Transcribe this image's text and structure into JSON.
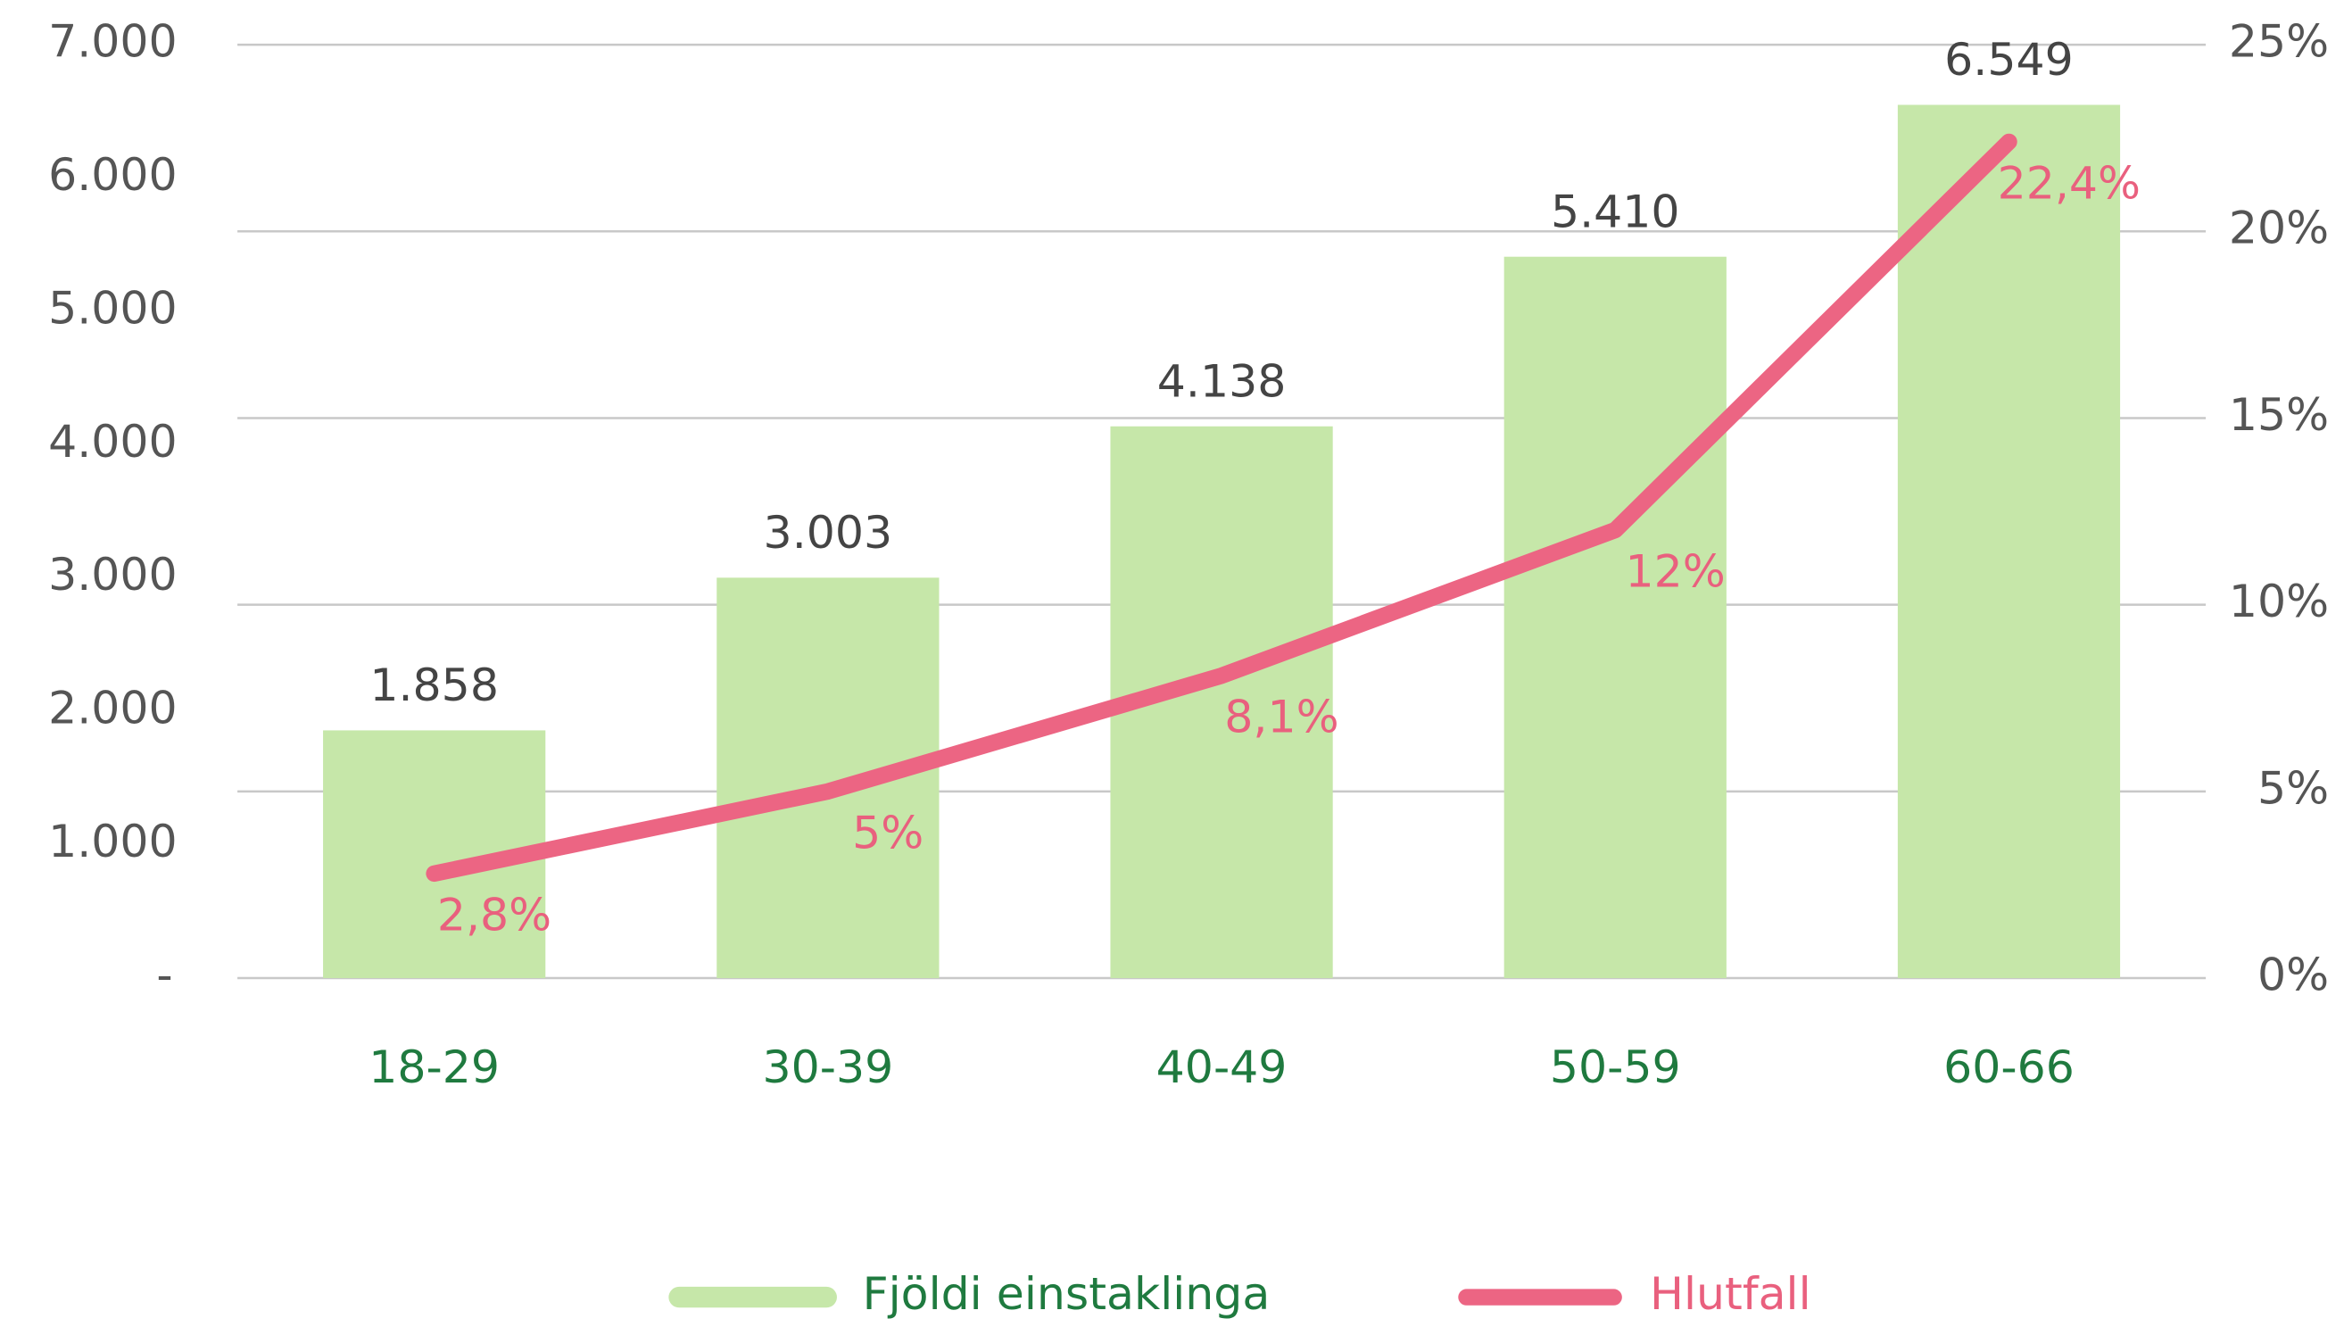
{
  "chart_data": {
    "type": "bar+line",
    "categories": [
      "18-29",
      "30-39",
      "40-49",
      "50-59",
      "60-66"
    ],
    "series": [
      {
        "name": "Fjöldi einstaklinga",
        "type": "bar",
        "color": "#c6e7a9",
        "values": [
          1858,
          3003,
          4138,
          5410,
          6549
        ],
        "value_labels": [
          "1.858",
          "3.003",
          "4.138",
          "5.410",
          "6.549"
        ]
      },
      {
        "name": "Hlutfall",
        "type": "line",
        "axis": "y2",
        "color": "#ec6583",
        "values": [
          2.8,
          5,
          8.1,
          12,
          22.4
        ],
        "value_labels": [
          "2,8%",
          "5%",
          "8,1%",
          "12%",
          "22,4%"
        ]
      }
    ],
    "ylim": [
      0,
      7000
    ],
    "yticks": [
      {
        "value": 0,
        "label": "-"
      },
      {
        "value": 1000,
        "label": "1.000"
      },
      {
        "value": 2000,
        "label": "2.000"
      },
      {
        "value": 3000,
        "label": "3.000"
      },
      {
        "value": 4000,
        "label": "4.000"
      },
      {
        "value": 5000,
        "label": "5.000"
      },
      {
        "value": 6000,
        "label": "6.000"
      },
      {
        "value": 7000,
        "label": "7.000"
      }
    ],
    "y2lim": [
      0,
      25
    ],
    "y2ticks": [
      {
        "value": 0,
        "label": "0%"
      },
      {
        "value": 5,
        "label": "5%"
      },
      {
        "value": 10,
        "label": "10%"
      },
      {
        "value": 15,
        "label": "15%"
      },
      {
        "value": 20,
        "label": "20%"
      },
      {
        "value": 25,
        "label": "25%"
      }
    ],
    "grid": true,
    "legend": "bottom"
  }
}
